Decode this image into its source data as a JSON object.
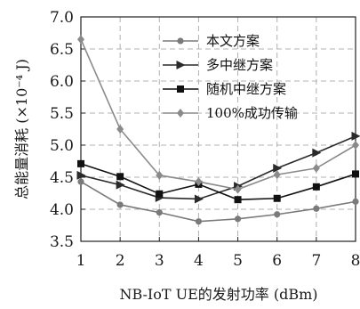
{
  "chart_data": {
    "type": "line",
    "title": "",
    "xlabel": "NB-IoT UE的发射功率 (dBm)",
    "ylabel": "总能量消耗 (×10⁻⁴ J)",
    "x": [
      1,
      2,
      3,
      4,
      5,
      6,
      7,
      8
    ],
    "xlim": [
      1,
      8
    ],
    "ylim": [
      3.5,
      7.0
    ],
    "xticks": [
      "1",
      "2",
      "3",
      "4",
      "5",
      "6",
      "7",
      "8"
    ],
    "yticks": [
      "3.5",
      "4.0",
      "4.5",
      "5.0",
      "5.5",
      "6.0",
      "6.5",
      "7.0"
    ],
    "grid": true,
    "legend_position": "top-right",
    "series": [
      {
        "name": "本文方案",
        "marker": "circle",
        "color": "#7a7a7a",
        "values": [
          4.43,
          4.07,
          3.95,
          3.81,
          3.85,
          3.92,
          4.01,
          4.12
        ]
      },
      {
        "name": "多中继方案",
        "marker": "triangle-right",
        "color": "#2a2a2a",
        "values": [
          4.53,
          4.38,
          4.18,
          4.16,
          4.36,
          4.64,
          4.88,
          5.14
        ]
      },
      {
        "name": "随机中继方案",
        "marker": "square",
        "color": "#111111",
        "values": [
          4.71,
          4.51,
          4.24,
          4.39,
          4.15,
          4.17,
          4.35,
          4.55
        ]
      },
      {
        "name": "100%成功传输",
        "marker": "diamond",
        "color": "#8a8a8a",
        "values": [
          6.65,
          5.25,
          4.53,
          4.43,
          4.31,
          4.54,
          4.64,
          5.0
        ]
      }
    ]
  }
}
